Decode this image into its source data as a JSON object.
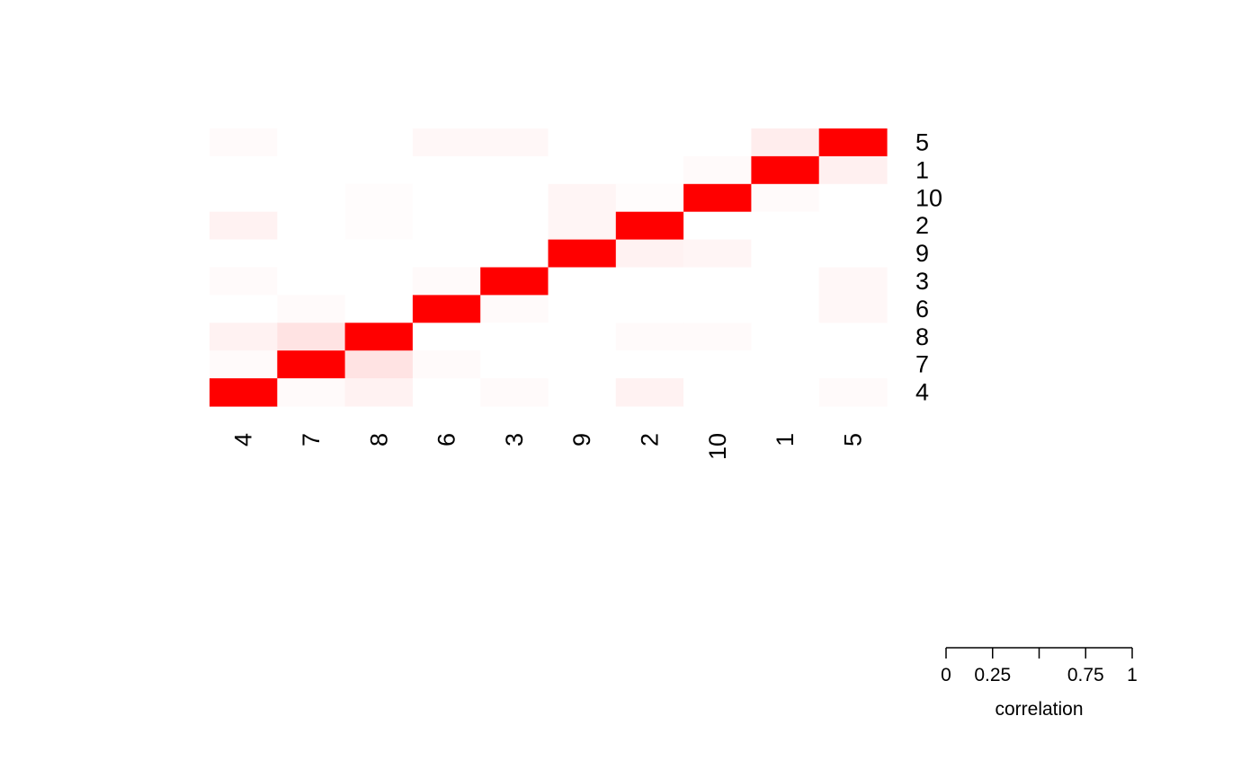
{
  "chart_data": {
    "type": "heatmap",
    "x_labels": [
      "4",
      "7",
      "8",
      "6",
      "3",
      "9",
      "2",
      "10",
      "1",
      "5"
    ],
    "y_labels": [
      "5",
      "1",
      "10",
      "2",
      "9",
      "3",
      "6",
      "8",
      "7",
      "4"
    ],
    "values": [
      [
        0.02,
        0.0,
        0.0,
        0.03,
        0.03,
        0.0,
        0.0,
        0.0,
        0.07,
        1.0
      ],
      [
        0.0,
        0.0,
        0.0,
        0.0,
        0.0,
        0.0,
        0.0,
        0.02,
        1.0,
        0.06
      ],
      [
        0.0,
        0.0,
        0.01,
        0.0,
        0.0,
        0.04,
        0.01,
        1.0,
        0.02,
        0.0
      ],
      [
        0.05,
        0.0,
        0.01,
        0.0,
        0.0,
        0.04,
        1.0,
        0.0,
        0.0,
        0.0
      ],
      [
        0.0,
        0.0,
        0.0,
        0.0,
        0.0,
        1.0,
        0.05,
        0.04,
        0.0,
        0.0
      ],
      [
        0.02,
        0.0,
        0.0,
        0.02,
        1.0,
        0.0,
        0.0,
        0.0,
        0.0,
        0.03
      ],
      [
        0.0,
        0.02,
        0.0,
        1.0,
        0.02,
        0.0,
        0.0,
        0.0,
        0.0,
        0.03
      ],
      [
        0.05,
        0.11,
        1.0,
        0.0,
        0.0,
        0.0,
        0.02,
        0.02,
        0.0,
        0.0
      ],
      [
        0.02,
        1.0,
        0.11,
        0.02,
        0.0,
        0.0,
        0.0,
        0.0,
        0.0,
        0.0
      ],
      [
        1.0,
        0.02,
        0.05,
        0.0,
        0.02,
        0.0,
        0.05,
        0.0,
        0.0,
        0.02
      ]
    ],
    "color_low": "#ffffff",
    "color_high": "#ff0000",
    "legend": {
      "label": "correlation",
      "range": [
        0,
        1
      ],
      "ticks": [
        0,
        0.25,
        0.5,
        0.75,
        1
      ],
      "tick_labels": [
        "0",
        "0.25",
        "",
        "0.75",
        "1"
      ]
    }
  }
}
